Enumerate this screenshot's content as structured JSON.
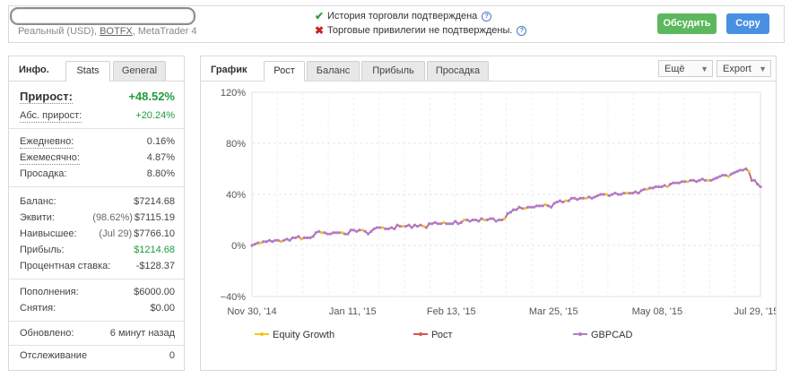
{
  "header": {
    "account_prefix": "Реальный (USD), ",
    "account_link": "BOTFX",
    "account_suffix": ", MetaTrader 4",
    "verify_history": "История торговли подтверждена",
    "verify_privileges": "Торговые привилегии не подтверждены.",
    "discuss_label": "Обсудить",
    "copy_label": "Copy"
  },
  "left_panel": {
    "title": "Инфо.",
    "tabs": [
      "Stats",
      "General"
    ],
    "gain": {
      "label": "Прирост:",
      "value": "+48.52%"
    },
    "abs_gain": {
      "label": "Абс. прирост:",
      "value": "+20.24%"
    },
    "daily": {
      "label": "Ежедневно:",
      "value": "0.16%"
    },
    "monthly": {
      "label": "Ежемесячно:",
      "value": "4.87%"
    },
    "drawdown": {
      "label": "Просадка:",
      "value": "8.80%"
    },
    "balance": {
      "label": "Баланс:",
      "value": "$7214.68"
    },
    "equity": {
      "label": "Эквити:",
      "sub": "(98.62%)",
      "value": "$7115.19"
    },
    "highest": {
      "label": "Наивысшее:",
      "sub": "(Jul 29)",
      "value": "$7766.10"
    },
    "profit": {
      "label": "Прибыль:",
      "value": "$1214.68"
    },
    "interest": {
      "label": "Процентная ставка:",
      "value": "-$128.37"
    },
    "deposits": {
      "label": "Пополнения:",
      "value": "$6000.00"
    },
    "withdrawals": {
      "label": "Снятия:",
      "value": "$0.00"
    },
    "updated": {
      "label": "Обновлено:",
      "value": "6 минут назад"
    },
    "tracking": {
      "label": "Отслеживание",
      "value": "0"
    }
  },
  "chart_panel": {
    "title": "График",
    "tabs": [
      "Рост",
      "Баланс",
      "Прибыль",
      "Просадка"
    ],
    "more_label": "Ещё",
    "export_label": "Export"
  },
  "chart_data": {
    "type": "line",
    "x_tick_labels": [
      "Nov 30, '14",
      "Jan 11, '15",
      "Feb 13, '15",
      "Mar 25, '15",
      "May 08, '15",
      "Jul 29, '15"
    ],
    "y_tick_labels": [
      "120%",
      "80%",
      "40%",
      "0%",
      "−40%"
    ],
    "ylim": [
      -40,
      120
    ],
    "grid": true,
    "legend_position": "bottom",
    "series": [
      {
        "name": "Equity Growth",
        "color": "#f5c518"
      },
      {
        "name": "Рост",
        "color": "#d9534f"
      },
      {
        "name": "GBPCAD",
        "color": "#b07cc6"
      }
    ],
    "values": [
      0,
      1,
      2,
      2,
      3,
      3,
      4,
      3,
      4,
      4,
      3,
      4,
      5,
      4,
      6,
      6,
      7,
      5,
      6,
      6,
      6,
      7,
      10,
      11,
      10,
      10,
      9,
      9,
      10,
      10,
      10,
      10,
      9,
      9,
      12,
      12,
      11,
      12,
      12,
      11,
      9,
      11,
      13,
      14,
      14,
      14,
      13,
      13,
      14,
      13,
      16,
      15,
      15,
      15,
      16,
      14,
      16,
      15,
      16,
      15,
      14,
      17,
      17,
      18,
      17,
      17,
      18,
      17,
      17,
      17,
      19,
      17,
      18,
      20,
      20,
      19,
      20,
      20,
      19,
      21,
      20,
      20,
      21,
      21,
      19,
      20,
      20,
      21,
      25,
      26,
      28,
      28,
      30,
      29,
      29,
      30,
      30,
      30,
      31,
      31,
      31,
      32,
      31,
      30,
      33,
      34,
      35,
      34,
      35,
      35,
      37,
      37,
      36,
      37,
      37,
      37,
      38,
      37,
      38,
      39,
      40,
      40,
      40,
      39,
      40,
      41,
      40,
      40,
      41,
      41,
      41,
      41,
      42,
      41,
      43,
      44,
      44,
      45,
      45,
      46,
      46,
      46,
      47,
      46,
      48,
      49,
      49,
      49,
      50,
      50,
      50,
      51,
      51,
      50,
      51,
      52,
      51,
      51,
      51,
      52,
      53,
      54,
      55,
      55,
      54,
      56,
      57,
      58,
      59,
      59,
      60,
      58,
      51,
      51,
      48,
      46
    ]
  }
}
